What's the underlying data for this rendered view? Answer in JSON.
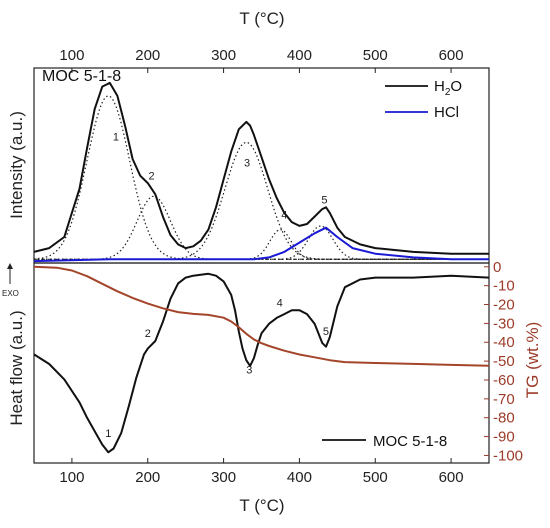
{
  "chart_data": [
    {
      "type": "line",
      "panel": "top",
      "panel_label": "MOC 5-1-8",
      "xlabel": "T (°C)",
      "ylabel": "Intensity (a.u.)",
      "xlim": [
        50,
        650
      ],
      "x_ticks": [
        100,
        200,
        300,
        400,
        500,
        600
      ],
      "ylim": [
        0,
        1.05
      ],
      "legend_position": "top-right",
      "series": [
        {
          "name": "H2O",
          "legend_main": "H",
          "legend_sub": "2",
          "legend_tail": "O",
          "color": "#111111",
          "style": "solid",
          "x": [
            50,
            70,
            90,
            110,
            120,
            130,
            140,
            150,
            160,
            170,
            180,
            190,
            200,
            210,
            220,
            230,
            240,
            250,
            260,
            270,
            280,
            290,
            300,
            310,
            320,
            330,
            335,
            340,
            350,
            360,
            370,
            380,
            390,
            400,
            410,
            420,
            430,
            435,
            440,
            450,
            460,
            480,
            500,
            550,
            600,
            650
          ],
          "y": [
            0.06,
            0.08,
            0.14,
            0.4,
            0.62,
            0.83,
            0.95,
            0.97,
            0.9,
            0.74,
            0.56,
            0.47,
            0.43,
            0.37,
            0.25,
            0.15,
            0.1,
            0.08,
            0.09,
            0.12,
            0.18,
            0.3,
            0.45,
            0.6,
            0.72,
            0.76,
            0.74,
            0.69,
            0.57,
            0.45,
            0.35,
            0.27,
            0.22,
            0.2,
            0.21,
            0.25,
            0.29,
            0.3,
            0.27,
            0.19,
            0.14,
            0.1,
            0.08,
            0.06,
            0.05,
            0.05
          ]
        },
        {
          "name": "HCl",
          "color": "#1a1ad6",
          "style": "solid",
          "x": [
            50,
            150,
            250,
            300,
            340,
            360,
            380,
            400,
            420,
            435,
            450,
            470,
            500,
            550,
            600,
            650
          ],
          "y": [
            0.01,
            0.02,
            0.02,
            0.02,
            0.02,
            0.03,
            0.06,
            0.11,
            0.16,
            0.19,
            0.14,
            0.08,
            0.05,
            0.03,
            0.02,
            0.02
          ]
        }
      ],
      "deconvolution": [
        {
          "label": "1",
          "center": 148,
          "amplitude": 0.88,
          "width": 28,
          "label_x": 158,
          "label_y": 0.66
        },
        {
          "label": "2",
          "center": 208,
          "amplitude": 0.34,
          "width": 22,
          "label_x": 205,
          "label_y": 0.45
        },
        {
          "label": "3",
          "center": 330,
          "amplitude": 0.63,
          "width": 28,
          "label_x": 331,
          "label_y": 0.52
        },
        {
          "label": "4",
          "center": 375,
          "amplitude": 0.16,
          "width": 14,
          "label_x": 380,
          "label_y": 0.24
        },
        {
          "label": "5",
          "center": 428,
          "amplitude": 0.18,
          "width": 16,
          "label_x": 433,
          "label_y": 0.32
        }
      ]
    },
    {
      "type": "line",
      "panel": "bottom",
      "xlabel": "T (°C)",
      "ylabel": "Heat flow (a.u.)",
      "y2label": "TG (wt.%)",
      "y2lim": [
        -104,
        2
      ],
      "y2_ticks": [
        0,
        -10,
        -20,
        -30,
        -40,
        -50,
        -60,
        -70,
        -80,
        -90,
        -100
      ],
      "exo_label": "EXO",
      "legend_position": "bottom-right",
      "series": [
        {
          "name": "MOC 5-1-8",
          "axis": "left",
          "color": "#111111",
          "x": [
            50,
            70,
            90,
            110,
            120,
            130,
            140,
            148,
            155,
            165,
            175,
            185,
            195,
            200,
            210,
            220,
            230,
            240,
            250,
            260,
            270,
            280,
            290,
            300,
            310,
            315,
            320,
            325,
            330,
            335,
            340,
            345,
            350,
            360,
            370,
            380,
            390,
            400,
            410,
            420,
            425,
            430,
            435,
            440,
            450,
            460,
            480,
            500,
            550,
            600,
            650
          ],
          "y": [
            0.55,
            0.5,
            0.42,
            0.3,
            0.22,
            0.15,
            0.08,
            0.04,
            0.06,
            0.14,
            0.28,
            0.43,
            0.55,
            0.58,
            0.62,
            0.72,
            0.84,
            0.92,
            0.95,
            0.96,
            0.965,
            0.97,
            0.96,
            0.93,
            0.86,
            0.78,
            0.67,
            0.58,
            0.52,
            0.49,
            0.53,
            0.6,
            0.66,
            0.71,
            0.74,
            0.76,
            0.78,
            0.78,
            0.76,
            0.71,
            0.66,
            0.61,
            0.59,
            0.64,
            0.8,
            0.9,
            0.94,
            0.95,
            0.95,
            0.96,
            0.95
          ]
        },
        {
          "name": "TG",
          "axis": "right",
          "color": "#a4452a",
          "x": [
            50,
            80,
            100,
            120,
            140,
            160,
            180,
            200,
            220,
            240,
            260,
            280,
            300,
            310,
            320,
            330,
            340,
            350,
            360,
            380,
            400,
            420,
            440,
            460,
            500,
            550,
            600,
            650
          ],
          "y": [
            0,
            -0.5,
            -2,
            -5,
            -9,
            -13,
            -16.5,
            -19.5,
            -22,
            -24,
            -25,
            -25.5,
            -27,
            -29,
            -32,
            -35.5,
            -38.5,
            -40.5,
            -42,
            -44.5,
            -46.5,
            -48,
            -49.5,
            -50.5,
            -51,
            -51.5,
            -52,
            -52.5
          ]
        }
      ],
      "peak_labels": [
        {
          "label": "1",
          "x": 148,
          "y": 0.12
        },
        {
          "label": "2",
          "x": 200,
          "y": 0.64
        },
        {
          "label": "3",
          "x": 334,
          "y": 0.45
        },
        {
          "label": "4",
          "x": 374,
          "y": 0.8
        },
        {
          "label": "5",
          "x": 435,
          "y": 0.65
        }
      ]
    }
  ]
}
